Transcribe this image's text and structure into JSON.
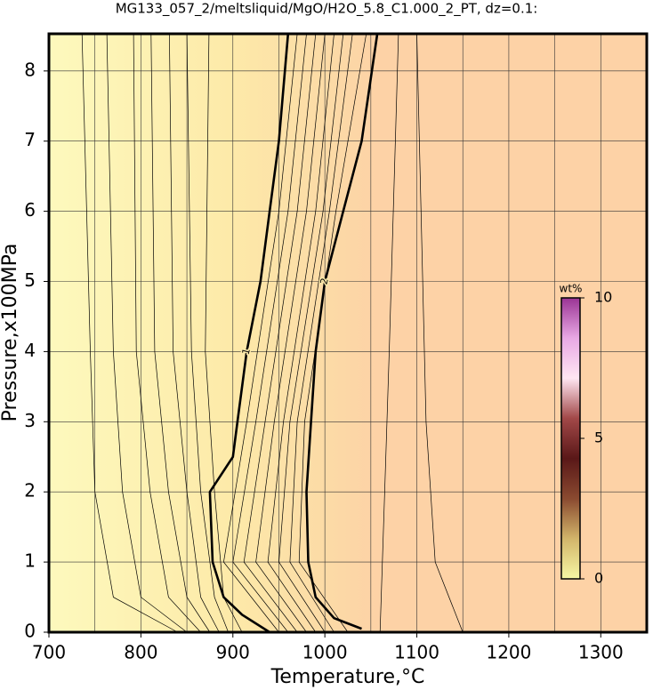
{
  "chart_data": {
    "type": "contour",
    "title": "MG133_057_2/meltsliquid/MgO/H2O_5.8_C1.000_2_PT, dz=0.1:",
    "xlabel": "Temperature,°C",
    "ylabel": "Pressure,x100MPa",
    "xlim": [
      700,
      1350
    ],
    "ylim": [
      0,
      8.53
    ],
    "xticks": [
      700,
      800,
      900,
      1000,
      1100,
      1200,
      1300
    ],
    "xgrid": [
      750,
      800,
      850,
      900,
      950,
      1000,
      1050,
      1100,
      1150,
      1200,
      1250,
      1300
    ],
    "yticks": [
      0,
      1,
      2,
      3,
      4,
      5,
      6,
      7,
      8
    ],
    "grid": true,
    "contours": [
      {
        "level": 0.3,
        "x": [
          840,
          770,
          750,
          745,
          736
        ],
        "y": [
          0,
          0.5,
          2,
          4,
          8.53
        ]
      },
      {
        "level": 0.4,
        "x": [
          850,
          800,
          780,
          770,
          763
        ],
        "y": [
          0,
          0.5,
          2,
          4,
          8.53
        ]
      },
      {
        "level": 0.5,
        "x": [
          865,
          830,
          810,
          795,
          792
        ],
        "y": [
          0,
          0.5,
          2,
          4,
          8.53
        ]
      },
      {
        "level": 0.6,
        "x": [
          875,
          850,
          830,
          815,
          811
        ],
        "y": [
          0,
          0.5,
          2,
          4,
          8.53
        ]
      },
      {
        "level": 0.7,
        "x": [
          885,
          865,
          850,
          835,
          831
        ],
        "y": [
          0,
          0.5,
          2,
          4,
          8.53
        ]
      },
      {
        "level": 0.8,
        "x": [
          895,
          880,
          865,
          855,
          850
        ],
        "y": [
          0,
          0.5,
          2,
          4,
          8.53
        ]
      },
      {
        "level": 0.9,
        "x": [
          910,
          890,
          880,
          870,
          874
        ],
        "y": [
          0,
          0.5,
          2,
          4,
          8.53
        ]
      },
      {
        "level": 1,
        "x": [
          940,
          910,
          890,
          878,
          875,
          880,
          900,
          905,
          915,
          930,
          940,
          950,
          960
        ],
        "y": [
          0,
          0.25,
          0.5,
          1,
          2,
          2.1,
          2.5,
          3,
          4,
          5,
          6,
          7,
          8.53
        ]
      },
      {
        "level": 1.1,
        "x": [
          950,
          890,
          915,
          950,
          970
        ],
        "y": [
          0,
          1,
          3,
          6,
          8.53
        ]
      },
      {
        "level": 1.2,
        "x": [
          960,
          900,
          925,
          960,
          980
        ],
        "y": [
          0,
          1,
          3,
          6,
          8.53
        ]
      },
      {
        "level": 1.3,
        "x": [
          970,
          912,
          935,
          970,
          990
        ],
        "y": [
          0,
          1,
          3,
          6,
          8.53
        ]
      },
      {
        "level": 1.4,
        "x": [
          980,
          925,
          945,
          980,
          1000
        ],
        "y": [
          0,
          1,
          3,
          6,
          8.53
        ]
      },
      {
        "level": 1.5,
        "x": [
          990,
          938,
          955,
          990,
          1010
        ],
        "y": [
          0,
          1,
          3,
          6,
          8.53
        ]
      },
      {
        "level": 1.6,
        "x": [
          1000,
          950,
          962,
          998,
          1020
        ],
        "y": [
          0,
          1,
          3,
          6,
          8.53
        ]
      },
      {
        "level": 1.7,
        "x": [
          1010,
          962,
          970,
          1005,
          1030
        ],
        "y": [
          0,
          1,
          3,
          6,
          8.53
        ]
      },
      {
        "level": 1.8,
        "x": [
          1025,
          972,
          978,
          1012,
          1045
        ],
        "y": [
          0,
          1,
          3,
          6,
          8.53
        ]
      },
      {
        "level": 2,
        "x": [
          1040,
          1010,
          990,
          982,
          980,
          985,
          990,
          1000,
          1020,
          1040,
          1057
        ],
        "y": [
          0.05,
          0.2,
          0.5,
          1,
          2,
          3,
          4,
          5,
          6,
          7,
          8.53
        ]
      },
      {
        "level": 2.2,
        "x": [
          1060,
          1065,
          1070,
          1080
        ],
        "y": [
          0,
          2,
          4,
          8.53
        ]
      },
      {
        "level": 2.3,
        "x": [
          1150,
          1120,
          1110,
          1100
        ],
        "y": [
          0,
          1,
          3,
          8.53
        ]
      }
    ],
    "colorbar": {
      "label": "wt%",
      "lim": [
        0,
        10
      ],
      "ticks": [
        0,
        5,
        10
      ],
      "colors": [
        "#f6f7a4",
        "#d2b56a",
        "#8a4a30",
        "#5a1818",
        "#a24848",
        "#ffe6f2",
        "#e8a8e4",
        "#9a3494"
      ]
    }
  }
}
